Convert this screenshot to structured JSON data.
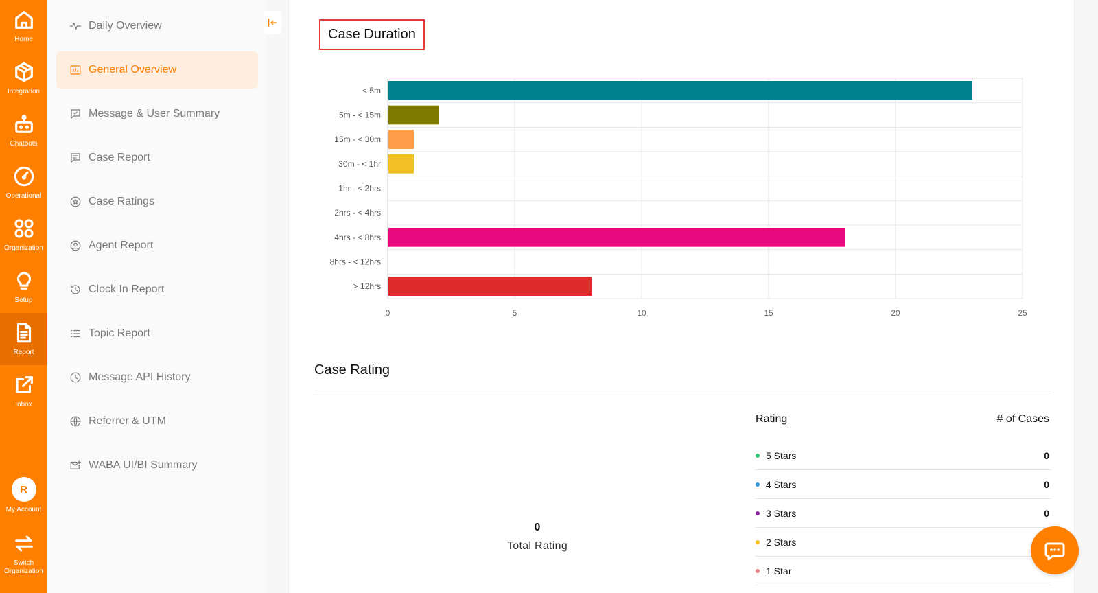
{
  "rail": {
    "items": [
      {
        "label": "Home",
        "icon": "home-icon"
      },
      {
        "label": "Integration",
        "icon": "cube-icon"
      },
      {
        "label": "Chatbots",
        "icon": "robot-icon"
      },
      {
        "label": "Operational",
        "icon": "gauge-icon"
      },
      {
        "label": "Organization",
        "icon": "grid-circles-icon"
      },
      {
        "label": "Setup",
        "icon": "bulb-icon"
      },
      {
        "label": "Report",
        "icon": "document-icon"
      },
      {
        "label": "Inbox",
        "icon": "external-link-icon"
      }
    ],
    "account_initial": "R",
    "account_label": "My Account",
    "switch_label_1": "Switch",
    "switch_label_2": "Organization"
  },
  "subnav": {
    "items": [
      {
        "label": "Daily Overview",
        "icon": "pulse-icon"
      },
      {
        "label": "General Overview",
        "icon": "dashboard-icon"
      },
      {
        "label": "Message & User Summary",
        "icon": "message-check-icon"
      },
      {
        "label": "Case Report",
        "icon": "message-lines-icon"
      },
      {
        "label": "Case Ratings",
        "icon": "star-circle-icon"
      },
      {
        "label": "Agent Report",
        "icon": "user-circle-icon"
      },
      {
        "label": "Clock In Report",
        "icon": "clock-reverse-icon"
      },
      {
        "label": "Topic Report",
        "icon": "list-icon"
      },
      {
        "label": "Message API History",
        "icon": "clock-icon"
      },
      {
        "label": "Referrer & UTM",
        "icon": "globe-icon"
      },
      {
        "label": "WABA UI/BI Summary",
        "icon": "mail-plus-icon"
      }
    ],
    "active_index": 1
  },
  "case_duration": {
    "title": "Case Duration"
  },
  "chart_data": {
    "type": "bar",
    "orientation": "horizontal",
    "categories": [
      "< 5m",
      "5m - < 15m",
      "15m - < 30m",
      "30m - < 1hr",
      "1hr - < 2hrs",
      "2hrs - < 4hrs",
      "4hrs - < 8hrs",
      "8hrs - < 12hrs",
      "> 12hrs"
    ],
    "values": [
      23,
      2,
      1,
      1,
      0,
      0,
      18,
      0,
      8
    ],
    "colors": [
      "#00838f",
      "#7f7a00",
      "#ff9e4a",
      "#f2bf26",
      "#999999",
      "#999999",
      "#e8097f",
      "#999999",
      "#de2c2c"
    ],
    "xlim": [
      0,
      25
    ],
    "xticks": [
      "0",
      "5",
      "10",
      "15",
      "20",
      "25"
    ],
    "grid": true
  },
  "case_rating": {
    "title": "Case Rating",
    "total_value": "0",
    "total_label": "Total Rating",
    "col_rating": "Rating",
    "col_cases": "# of Cases",
    "rows": [
      {
        "label": "5 Stars",
        "value": "0",
        "color": "#2ecc71"
      },
      {
        "label": "4 Stars",
        "value": "0",
        "color": "#3498db"
      },
      {
        "label": "3 Stars",
        "value": "0",
        "color": "#8e24aa"
      },
      {
        "label": "2 Stars",
        "value": "",
        "color": "#f1c40f"
      },
      {
        "label": "1 Star",
        "value": "",
        "color": "#f08080"
      }
    ]
  }
}
